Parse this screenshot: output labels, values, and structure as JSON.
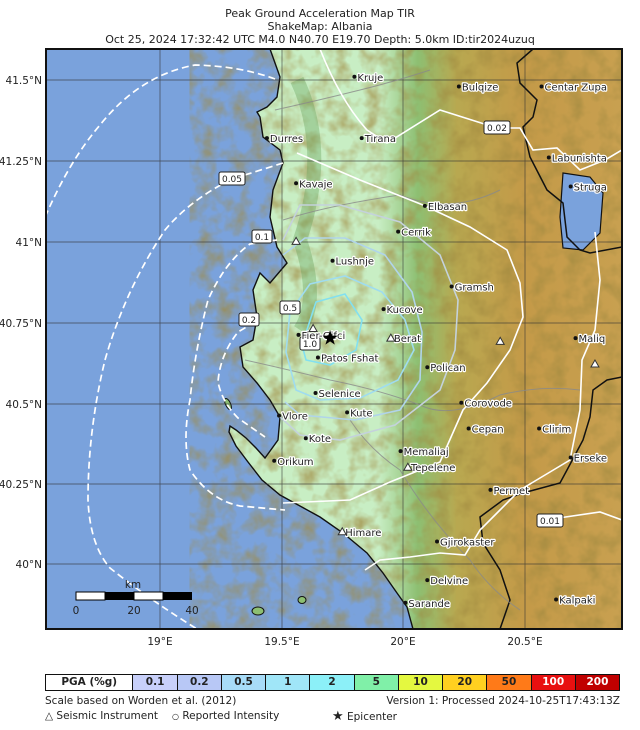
{
  "header": {
    "title": "Peak Ground Acceleration Map TIR",
    "subtitle": "ShakeMap: Albania",
    "event": "Oct 25, 2024 17:32:42 UTC M4.0 N40.70 E19.70 Depth: 5.0km ID:tir2024uzuq"
  },
  "map": {
    "lat_ticks": [
      "41.5°N",
      "41.25°N",
      "41°N",
      "40.75°N",
      "40.5°N",
      "40.25°N",
      "40°N"
    ],
    "lon_ticks": [
      "19°E",
      "19.5°E",
      "20°E",
      "20.5°E"
    ],
    "lat_range": [
      39.85,
      41.6
    ],
    "lon_range": [
      18.64,
      21.01
    ],
    "contour_labels": [
      "0.02",
      "0.05",
      "0.1",
      "0.2",
      "0.5",
      "1.0",
      "0.01"
    ],
    "scale_bar": {
      "unit": "km",
      "labels": [
        "0",
        "20",
        "40"
      ]
    },
    "epicenter": {
      "lat": 40.7,
      "lon": 19.7
    },
    "colors": {
      "sea": "#7aa2dc",
      "lowland": "#c6eec0",
      "highland": "#c49a48",
      "border": "#111111"
    },
    "cities": [
      {
        "name": "Kruje",
        "lat": 41.51,
        "lon": 19.8
      },
      {
        "name": "Bulqize",
        "lat": 41.48,
        "lon": 20.23
      },
      {
        "name": "Centar Zupa",
        "lat": 41.48,
        "lon": 20.57
      },
      {
        "name": "Tirana",
        "lat": 41.32,
        "lon": 19.83
      },
      {
        "name": "Durres",
        "lat": 41.32,
        "lon": 19.44
      },
      {
        "name": "Labunishta",
        "lat": 41.26,
        "lon": 20.6
      },
      {
        "name": "Kavaje",
        "lat": 41.18,
        "lon": 19.56
      },
      {
        "name": "Struga",
        "lat": 41.17,
        "lon": 20.69
      },
      {
        "name": "Elbasan",
        "lat": 41.11,
        "lon": 20.09
      },
      {
        "name": "Cerrik",
        "lat": 41.03,
        "lon": 19.98
      },
      {
        "name": "Lushnje",
        "lat": 40.94,
        "lon": 19.71
      },
      {
        "name": "Gramsh",
        "lat": 40.86,
        "lon": 20.2
      },
      {
        "name": "Kucove",
        "lat": 40.79,
        "lon": 19.92
      },
      {
        "name": "Fier-Gifci",
        "lat": 40.71,
        "lon": 19.57
      },
      {
        "name": "Berat",
        "lat": 40.7,
        "lon": 19.95
      },
      {
        "name": "Maliq",
        "lat": 40.7,
        "lon": 20.71
      },
      {
        "name": "Patos Fshat",
        "lat": 40.64,
        "lon": 19.65
      },
      {
        "name": "Polican",
        "lat": 40.61,
        "lon": 20.1
      },
      {
        "name": "Selenice",
        "lat": 40.53,
        "lon": 19.64
      },
      {
        "name": "Corovode",
        "lat": 40.5,
        "lon": 20.24
      },
      {
        "name": "Vlore",
        "lat": 40.46,
        "lon": 19.49
      },
      {
        "name": "Kute",
        "lat": 40.47,
        "lon": 19.77
      },
      {
        "name": "Cepan",
        "lat": 40.42,
        "lon": 20.27
      },
      {
        "name": "Clirim",
        "lat": 40.42,
        "lon": 20.56
      },
      {
        "name": "Kote",
        "lat": 40.39,
        "lon": 19.6
      },
      {
        "name": "Memaliaj",
        "lat": 40.35,
        "lon": 19.99
      },
      {
        "name": "Tepelene",
        "lat": 40.3,
        "lon": 20.02
      },
      {
        "name": "Orikum",
        "lat": 40.32,
        "lon": 19.47
      },
      {
        "name": "Erseke",
        "lat": 40.33,
        "lon": 20.69
      },
      {
        "name": "Permet",
        "lat": 40.23,
        "lon": 20.36
      },
      {
        "name": "Himare",
        "lat": 40.1,
        "lon": 19.75
      },
      {
        "name": "Gjirokaster",
        "lat": 40.07,
        "lon": 20.14
      },
      {
        "name": "Delvine",
        "lat": 39.95,
        "lon": 20.1
      },
      {
        "name": "Sarande",
        "lat": 39.88,
        "lon": 20.01
      },
      {
        "name": "Kalpaki",
        "lat": 39.89,
        "lon": 20.63
      }
    ],
    "stations": [
      {
        "lat": 41.0,
        "lon": 19.56
      },
      {
        "lat": 40.73,
        "lon": 19.63
      },
      {
        "lat": 40.7,
        "lon": 19.95
      },
      {
        "lat": 40.69,
        "lon": 20.4
      },
      {
        "lat": 40.62,
        "lon": 20.79
      },
      {
        "lat": 40.3,
        "lon": 20.02
      },
      {
        "lat": 40.1,
        "lon": 19.75
      }
    ]
  },
  "legend": {
    "label": "PGA (%g)",
    "bins": [
      {
        "value": "0.1",
        "color": "#c8d0fa"
      },
      {
        "value": "0.2",
        "color": "#b8c8f6"
      },
      {
        "value": "0.5",
        "color": "#a8dcf8"
      },
      {
        "value": "1",
        "color": "#a0e6f8"
      },
      {
        "value": "2",
        "color": "#8cf0f8"
      },
      {
        "value": "5",
        "color": "#80f0a8"
      },
      {
        "value": "10",
        "color": "#e4f840"
      },
      {
        "value": "20",
        "color": "#ffd020"
      },
      {
        "value": "50",
        "color": "#ff7a18"
      },
      {
        "value": "100",
        "color": "#e81010"
      },
      {
        "value": "200",
        "color": "#c00000"
      }
    ]
  },
  "footer": {
    "scale_note": "Scale based on Worden et al. (2012)",
    "version": "Version 1: Processed 2024-10-25T17:43:13Z",
    "instrument": "Seismic Instrument",
    "intensity": "Reported Intensity",
    "epicenter": "Epicenter"
  }
}
